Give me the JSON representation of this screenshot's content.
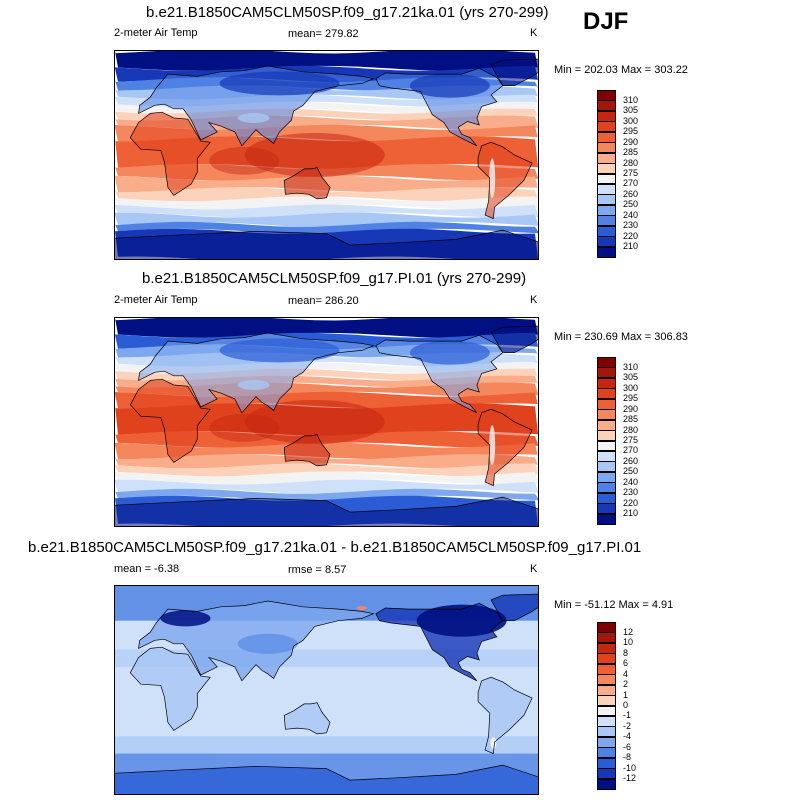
{
  "season": "DJF",
  "panels": [
    {
      "title": "b.e21.B1850CAM5CLM50SP.f09_g17.21ka.01 (yrs 270-299)",
      "left_label": "2-meter Air Temp",
      "center_label": "mean= 279.82",
      "right_label": "K",
      "minmax": "Min = 202.03 Max = 303.22",
      "colorbar": {
        "labels": [
          "310",
          "305",
          "300",
          "295",
          "290",
          "285",
          "280",
          "275",
          "270",
          "260",
          "250",
          "240",
          "230",
          "220",
          "210"
        ],
        "colors": [
          "#7f0000",
          "#a3160c",
          "#c6260f",
          "#e0421e",
          "#ee6035",
          "#f5875d",
          "#f9ad8a",
          "#fcd3ba",
          "#f3f3f3",
          "#cfe0f9",
          "#a8c7f5",
          "#7da8ee",
          "#4f82e3",
          "#2a5cd6",
          "#1637b6",
          "#000f82"
        ]
      },
      "map": {
        "type": "temperature",
        "cold_shift": 1
      }
    },
    {
      "title": "b.e21.B1850CAM5CLM50SP.f09_g17.PI.01 (yrs 270-299)",
      "left_label": "2-meter Air Temp",
      "center_label": "mean= 286.20",
      "right_label": "K",
      "minmax": "Min = 230.69 Max = 306.83",
      "colorbar": {
        "labels": [
          "310",
          "305",
          "300",
          "295",
          "290",
          "285",
          "280",
          "275",
          "270",
          "260",
          "250",
          "240",
          "230",
          "220",
          "210"
        ],
        "colors": [
          "#7f0000",
          "#a3160c",
          "#c6260f",
          "#e0421e",
          "#ee6035",
          "#f5875d",
          "#f9ad8a",
          "#fcd3ba",
          "#f3f3f3",
          "#cfe0f9",
          "#a8c7f5",
          "#7da8ee",
          "#4f82e3",
          "#2a5cd6",
          "#1637b6",
          "#000f82"
        ]
      },
      "map": {
        "type": "temperature",
        "cold_shift": 0
      }
    },
    {
      "title": "b.e21.B1850CAM5CLM50SP.f09_g17.21ka.01 - b.e21.B1850CAM5CLM50SP.f09_g17.PI.01",
      "left_label": "mean =  -6.38",
      "center_label": "rmse =  8.57",
      "right_label": "K",
      "minmax": "Min = -51.12 Max =  4.91",
      "colorbar": {
        "labels": [
          "12",
          "10",
          "8",
          "6",
          "4",
          "2",
          "1",
          "0",
          "-1",
          "-2",
          "-4",
          "-6",
          "-8",
          "-10",
          "-12"
        ],
        "colors": [
          "#7f0000",
          "#a3160c",
          "#c6260f",
          "#e0421e",
          "#ee6035",
          "#f5875d",
          "#f9ad8a",
          "#fcd3ba",
          "#f3f3f3",
          "#cfe0f9",
          "#a8c7f5",
          "#7da8ee",
          "#4f82e3",
          "#2a5cd6",
          "#1637b6",
          "#000f82"
        ]
      },
      "map": {
        "type": "difference"
      }
    }
  ]
}
